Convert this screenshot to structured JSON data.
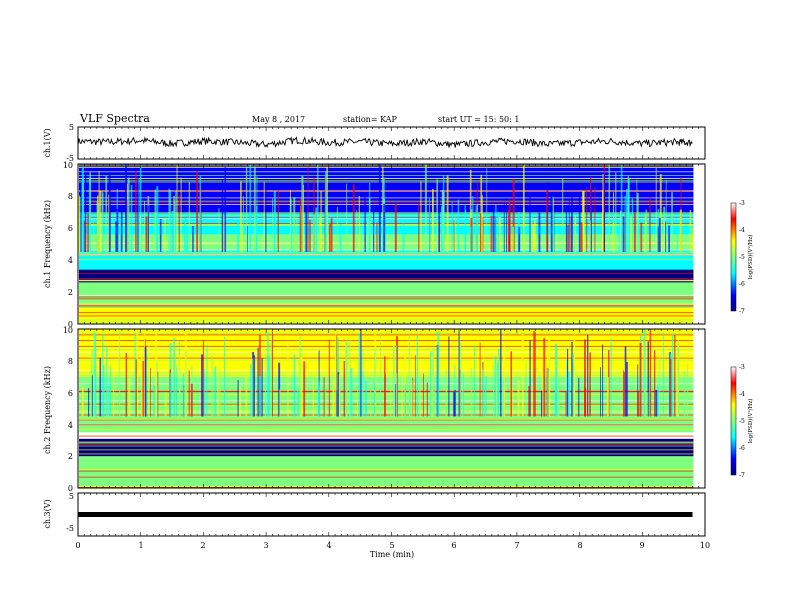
{
  "header": {
    "title": "VLF Spectra",
    "date": "May 8 , 2017",
    "station": "station= KAP",
    "start": "start UT = 15: 50: 1"
  },
  "colorbar": {
    "ticks": [
      "-3",
      "-4",
      "-5",
      "-6",
      "-7"
    ],
    "label": "log(PSD)(V²/Hz)",
    "colors": [
      "#000080",
      "#0000ff",
      "#00ffff",
      "#7fff7f",
      "#ffff00",
      "#ff0000",
      "#ffffff"
    ]
  },
  "chart_data": [
    {
      "type": "line",
      "name": "ch1-waveform",
      "ylabel": "ch.1(V)",
      "ylim": [
        -5,
        5
      ],
      "yticks": [
        "5",
        "-5"
      ],
      "xlim": [
        0,
        10
      ],
      "x": [
        0,
        0.5,
        1,
        1.5,
        2,
        2.5,
        3,
        3.5,
        4,
        4.5,
        5,
        5.5,
        6,
        6.5,
        7,
        7.5,
        8,
        8.5,
        9,
        9.5,
        9.8
      ],
      "y": [
        0.5,
        0.3,
        0.8,
        -0.2,
        0.6,
        0.2,
        -0.5,
        0.9,
        0.1,
        0.4,
        -0.3,
        0.5,
        -0.6,
        0.3,
        0.7,
        -0.4,
        0.2,
        0.6,
        -0.2,
        0.3,
        0.1
      ]
    },
    {
      "type": "heatmap",
      "name": "ch1-spectrogram",
      "ylabel": "ch.1 Frequency (kHz)",
      "ylim": [
        0,
        10
      ],
      "yticks": [
        "0",
        "2",
        "4",
        "6",
        "8",
        "10"
      ],
      "xlim": [
        0,
        10
      ],
      "z_range": [
        -7,
        -3
      ],
      "bands_khz": [
        {
          "from": 0,
          "to": 1,
          "level": -4.5
        },
        {
          "from": 1,
          "to": 2.6,
          "level": -5.0
        },
        {
          "from": 2.6,
          "to": 3.4,
          "level": -6.8
        },
        {
          "from": 3.4,
          "to": 4.6,
          "level": -5.4
        },
        {
          "from": 4.6,
          "to": 5.6,
          "level": -5.0
        },
        {
          "from": 5.6,
          "to": 7.0,
          "level": -5.8
        },
        {
          "from": 7.0,
          "to": 10,
          "level": -6.5
        }
      ]
    },
    {
      "type": "heatmap",
      "name": "ch2-spectrogram",
      "ylabel": "ch.2 Frequency (kHz)",
      "ylim": [
        0,
        10
      ],
      "yticks": [
        "0",
        "2",
        "4",
        "6",
        "8",
        "10"
      ],
      "xlim": [
        0,
        10
      ],
      "z_range": [
        -7,
        -3
      ],
      "bands_khz": [
        {
          "from": 0,
          "to": 2.0,
          "level": -5.0
        },
        {
          "from": 2.0,
          "to": 3.1,
          "level": -6.7
        },
        {
          "from": 3.1,
          "to": 3.5,
          "level": -3.2
        },
        {
          "from": 3.5,
          "to": 4.5,
          "level": -5.2
        },
        {
          "from": 4.5,
          "to": 7.0,
          "level": -4.8
        },
        {
          "from": 7.0,
          "to": 10,
          "level": -4.5
        }
      ]
    },
    {
      "type": "line",
      "name": "ch3-waveform",
      "ylabel": "ch.3(V)",
      "ylim": [
        -5,
        5
      ],
      "yticks": [
        "5",
        "-5"
      ],
      "xlim": [
        0,
        10
      ],
      "x": [
        0,
        9.8
      ],
      "y": [
        0,
        0
      ]
    }
  ],
  "xaxis": {
    "label": "Time (min)",
    "ticks": [
      "0",
      "1",
      "2",
      "3",
      "4",
      "5",
      "6",
      "7",
      "8",
      "9",
      "10"
    ]
  }
}
